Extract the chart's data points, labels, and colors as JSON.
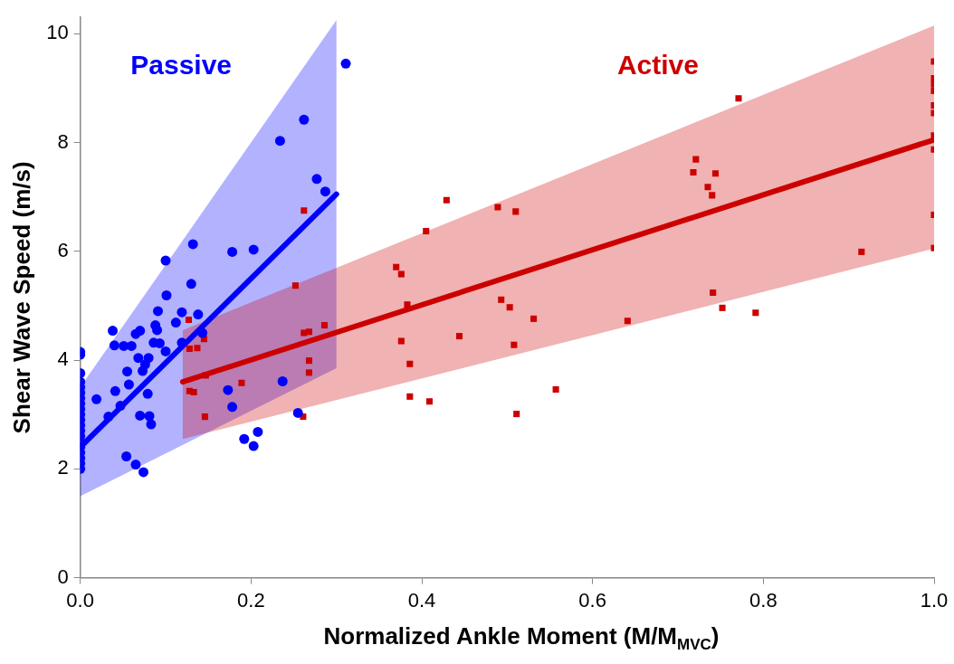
{
  "chart_data": {
    "type": "scatter",
    "xlabel": "Normalized Ankle Moment (M/M$_{MVC}$)",
    "ylabel": "Shear Wave Speed (m/s)",
    "xlim": [
      0,
      1
    ],
    "ylim": [
      0,
      10.3
    ],
    "xticks": [
      {
        "value": 0,
        "label": "0.0"
      },
      {
        "value": 0.2,
        "label": "0.2"
      },
      {
        "value": 0.4,
        "label": "0.4"
      },
      {
        "value": 0.6,
        "label": "0.6"
      },
      {
        "value": 0.8,
        "label": "0.8"
      },
      {
        "value": 1,
        "label": "1.0"
      }
    ],
    "yticks": [
      0,
      2,
      4,
      6,
      8,
      10
    ],
    "grid": false,
    "legend": false,
    "series": [
      {
        "name": "Passive",
        "type": "scatter",
        "marker": "circle",
        "color": "#0000ff",
        "x": [
          0,
          0,
          0,
          0,
          0,
          0,
          0,
          0,
          0,
          0,
          0,
          0,
          0,
          0,
          0,
          0,
          0,
          0,
          0,
          0,
          0.019,
          0.033,
          0.038,
          0.04,
          0.041,
          0.047,
          0.051,
          0.054,
          0.055,
          0.06,
          0.057,
          0.065,
          0.065,
          0.07,
          0.07,
          0.068,
          0.074,
          0.073,
          0.076,
          0.08,
          0.079,
          0.081,
          0.083,
          0.086,
          0.088,
          0.09,
          0.091,
          0.093,
          0.1,
          0.1,
          0.101,
          0.112,
          0.119,
          0.119,
          0.13,
          0.132,
          0.138,
          0.143,
          0.173,
          0.178,
          0.178,
          0.192,
          0.203,
          0.203,
          0.208,
          0.237,
          0.255,
          0.311,
          0.262,
          0.234,
          0.277,
          0.287
        ],
        "values": [
          4.15,
          4.1,
          3.76,
          3.6,
          3.5,
          3.4,
          3.3,
          3.2,
          3.1,
          3.0,
          2.9,
          2.8,
          2.7,
          2.6,
          2.5,
          2.4,
          2.3,
          2.2,
          2.1,
          2.0,
          3.28,
          2.96,
          4.54,
          4.27,
          3.43,
          3.16,
          4.26,
          2.23,
          3.79,
          4.26,
          3.55,
          2.08,
          4.48,
          4.54,
          2.98,
          4.04,
          1.94,
          3.8,
          3.92,
          4.04,
          3.38,
          2.97,
          2.82,
          4.32,
          4.64,
          4.55,
          4.9,
          4.31,
          4.16,
          5.83,
          5.19,
          4.69,
          4.88,
          4.32,
          5.4,
          6.13,
          4.84,
          4.5,
          3.45,
          3.14,
          5.99,
          2.55,
          6.03,
          2.42,
          2.68,
          3.61,
          3.03,
          9.45,
          8.42,
          8.03,
          7.33,
          7.1
        ]
      },
      {
        "type": "line",
        "color": "#0000ff",
        "x": [
          0,
          0.3
        ],
        "values": [
          2.4,
          7.05
        ],
        "lower": [
          1.5,
          3.85
        ],
        "upper": [
          3.5,
          10.25
        ]
      },
      {
        "name": "Active",
        "type": "scatter",
        "marker": "square",
        "color": "#cc0000",
        "x": [
          0.262,
          0.252,
          0.127,
          0.145,
          0.128,
          0.137,
          0.147,
          0.128,
          0.133,
          0.146,
          0.189,
          0.262,
          0.268,
          0.286,
          0.268,
          0.268,
          0.261,
          0.429,
          0.489,
          0.51,
          0.405,
          0.37,
          0.376,
          0.383,
          0.493,
          0.503,
          0.531,
          0.641,
          0.444,
          0.376,
          0.508,
          0.386,
          0.557,
          0.386,
          0.409,
          0.511,
          0.771,
          0.721,
          0.718,
          0.744,
          0.735,
          0.74,
          1,
          1,
          1,
          1,
          1,
          1,
          1,
          1,
          1,
          1,
          0.915,
          0.741,
          0.752,
          0.791
        ],
        "values": [
          6.75,
          5.37,
          4.74,
          4.39,
          4.21,
          4.22,
          3.72,
          3.43,
          3.41,
          2.96,
          3.58,
          4.5,
          4.52,
          4.64,
          3.99,
          3.77,
          2.96,
          6.94,
          6.81,
          6.73,
          6.37,
          5.71,
          5.58,
          5.02,
          5.11,
          4.97,
          4.76,
          4.72,
          4.44,
          4.35,
          4.28,
          3.93,
          3.46,
          3.33,
          3.24,
          3.01,
          8.81,
          7.69,
          7.45,
          7.43,
          7.18,
          7.03,
          9.49,
          9.18,
          9.07,
          8.95,
          8.68,
          8.54,
          8.13,
          7.87,
          6.67,
          6.06,
          5.99,
          5.24,
          4.96,
          4.87
        ]
      },
      {
        "type": "line",
        "color": "#cc0000",
        "x": [
          0.12,
          1
        ],
        "values": [
          3.6,
          8.05
        ],
        "lower": [
          2.55,
          6.05
        ],
        "upper": [
          4.55,
          10.15
        ]
      }
    ]
  }
}
